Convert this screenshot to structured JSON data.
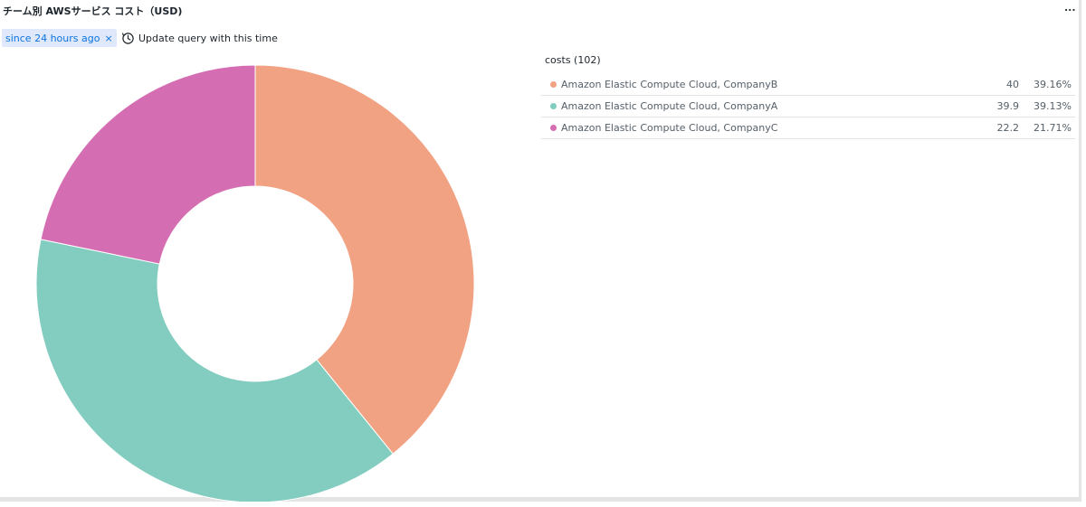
{
  "panel": {
    "title": "チーム別 AWSサービス コスト（USD)",
    "menu_label": "...",
    "since_chip": {
      "label": "since 24 hours ago",
      "close_glyph": "×"
    },
    "update_button": {
      "label": "Update query with this time",
      "icon": "clock-icon"
    }
  },
  "legend": {
    "title": "costs (102)",
    "items": [
      {
        "name": "Amazon Elastic Compute Cloud, CompanyB",
        "value": "40",
        "percent": "39.16%",
        "color": "#f1a283"
      },
      {
        "name": "Amazon Elastic Compute Cloud, CompanyA",
        "value": "39.9",
        "percent": "39.13%",
        "color": "#82cdbf"
      },
      {
        "name": "Amazon Elastic Compute Cloud, CompanyC",
        "value": "22.2",
        "percent": "21.71%",
        "color": "#d56db3"
      }
    ]
  },
  "chart_data": {
    "type": "pie",
    "style": "donut",
    "title": "チーム別 AWSサービス コスト（USD)",
    "total_label": "costs (102)",
    "legend_position": "right",
    "categories": [
      "Amazon Elastic Compute Cloud, CompanyB",
      "Amazon Elastic Compute Cloud, CompanyA",
      "Amazon Elastic Compute Cloud, CompanyC"
    ],
    "values": [
      40,
      39.9,
      22.2
    ],
    "percents": [
      39.16,
      39.13,
      21.71
    ],
    "colors": [
      "#f1a283",
      "#82cdbf",
      "#d56db3"
    ]
  }
}
